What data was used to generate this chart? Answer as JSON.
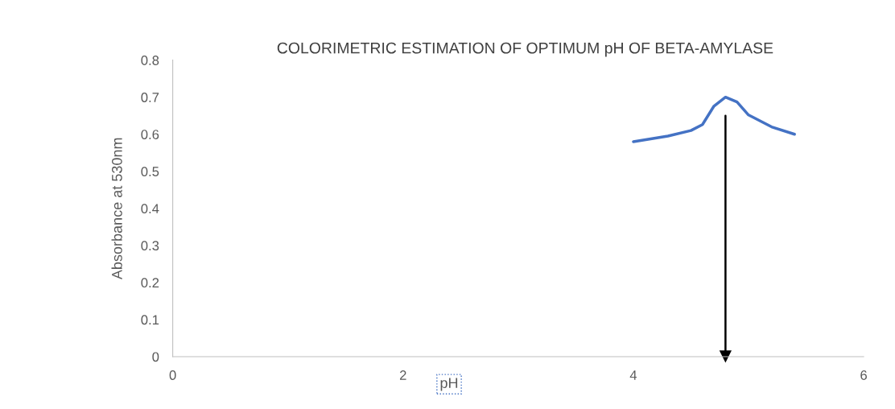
{
  "chart_data": {
    "type": "line",
    "title": "COLORIMETRIC ESTIMATION OF OPTIMUM pH OF BETA-AMYLASE",
    "xlabel": "pH",
    "ylabel": "Absorbance at 530nm",
    "x": [
      4.0,
      4.3,
      4.5,
      4.6,
      4.7,
      4.8,
      4.9,
      5.0,
      5.2,
      5.4
    ],
    "series": [
      {
        "color": "#4472c4",
        "values": [
          0.58,
          0.595,
          0.61,
          0.626,
          0.676,
          0.7,
          0.687,
          0.652,
          0.62,
          0.6
        ]
      },
      {
        "type": "line",
        "color": "#000000",
        "x": [
          4.8,
          4.8
        ],
        "values": [
          0.65,
          0.0
        ],
        "marker": "triangle"
      }
    ],
    "xlim": [
      0,
      6
    ],
    "xticks": [
      0,
      2,
      4,
      6
    ],
    "ylim": [
      0,
      0.8
    ],
    "yticks": [
      0,
      0.1,
      0.2,
      0.3,
      0.4,
      0.5,
      0.6,
      0.7,
      0.8
    ],
    "grid": false,
    "legend": false,
    "marker": "none",
    "line_style": "solid"
  }
}
